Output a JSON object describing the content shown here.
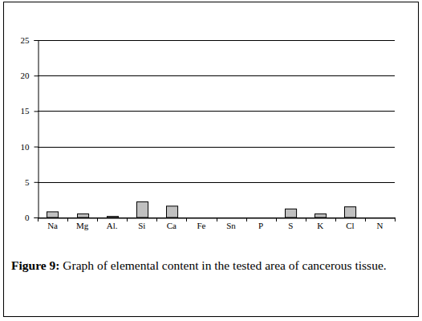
{
  "chart_data": {
    "type": "bar",
    "title": "Figure 9: Graph of elemental content in the tested area of cancerous tissue.",
    "categories": [
      "Na",
      "Mg",
      "Al.",
      "Si",
      "Ca",
      "Fe",
      "Sn",
      "P",
      "S",
      "K",
      "Cl",
      "N"
    ],
    "values": [
      0.8,
      0.5,
      0.15,
      2.2,
      1.6,
      0,
      0,
      0,
      1.2,
      0.5,
      1.5,
      0
    ],
    "color": "#c0c0c0",
    "ylim": [
      0,
      25
    ],
    "yticks": [
      0,
      5,
      10,
      15,
      20,
      25
    ],
    "grid": true
  }
}
